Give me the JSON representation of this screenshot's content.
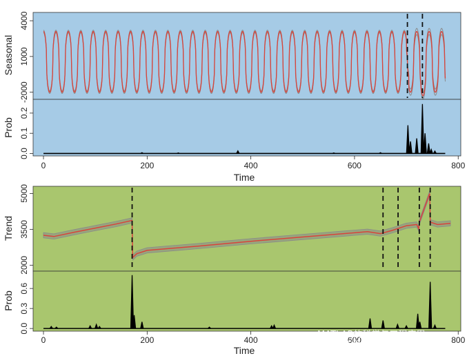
{
  "chart_data": [
    {
      "type": "line",
      "panel": "seasonal",
      "background": "#a6cbe6",
      "ylabel": "Seasonal",
      "yticks": [
        -2000,
        1000,
        4000
      ],
      "ylim": [
        -2600,
        4700
      ],
      "xlim": [
        -20,
        805
      ],
      "series": [
        {
          "color": "#d9433a",
          "band_color": "#8a8a8a",
          "period": 24,
          "amplitude_low": -2000,
          "amplitude_high": 3100,
          "x_end": 775
        }
      ],
      "changepoints": [
        702,
        731
      ]
    },
    {
      "type": "line",
      "panel": "seasonal-prob",
      "background": "#a6cbe6",
      "ylabel": "Prob",
      "yticks": [
        0.0,
        0.1,
        0.2
      ],
      "ylim": [
        -0.012,
        0.268
      ],
      "xlim": [
        -20,
        805
      ],
      "xticks": [
        0,
        200,
        400,
        600,
        800
      ],
      "xlabel": "Time",
      "spikes": [
        {
          "x": 190,
          "y": 0.004
        },
        {
          "x": 260,
          "y": 0.003
        },
        {
          "x": 375,
          "y": 0.013
        },
        {
          "x": 560,
          "y": 0.003
        },
        {
          "x": 650,
          "y": 0.004
        },
        {
          "x": 703,
          "y": 0.14
        },
        {
          "x": 708,
          "y": 0.06
        },
        {
          "x": 720,
          "y": 0.075
        },
        {
          "x": 731,
          "y": 0.245
        },
        {
          "x": 736,
          "y": 0.1
        },
        {
          "x": 743,
          "y": 0.05
        },
        {
          "x": 748,
          "y": 0.02
        },
        {
          "x": 755,
          "y": 0.012
        }
      ]
    },
    {
      "type": "line",
      "panel": "trend",
      "background": "#a9c66e",
      "ylabel": "Trend",
      "yticks": [
        2000,
        3500,
        5000
      ],
      "ylim": [
        1750,
        5300
      ],
      "xlim": [
        -20,
        805
      ],
      "series": [
        {
          "color": "#d9433a",
          "band_color": "#8a8a8a",
          "points": [
            [
              0,
              3250
            ],
            [
              20,
              3200
            ],
            [
              60,
              3380
            ],
            [
              100,
              3550
            ],
            [
              140,
              3720
            ],
            [
              171,
              3870
            ],
            [
              172,
              2320
            ],
            [
              180,
              2480
            ],
            [
              200,
              2620
            ],
            [
              300,
              2800
            ],
            [
              400,
              3000
            ],
            [
              500,
              3180
            ],
            [
              625,
              3400
            ],
            [
              650,
              3320
            ],
            [
              672,
              3450
            ],
            [
              700,
              3650
            ],
            [
              720,
              3700
            ],
            [
              724,
              3520
            ],
            [
              725,
              3800
            ],
            [
              745,
              5000
            ],
            [
              746,
              3800
            ],
            [
              760,
              3700
            ],
            [
              785,
              3750
            ]
          ]
        }
      ],
      "changepoints": [
        171,
        655,
        684,
        725,
        746
      ]
    },
    {
      "type": "line",
      "panel": "trend-prob",
      "background": "#a9c66e",
      "ylabel": "Prob",
      "yticks": [
        0.0,
        0.3,
        0.6
      ],
      "ylim": [
        -0.04,
        0.86
      ],
      "xlim": [
        -20,
        805
      ],
      "xticks": [
        0,
        200,
        400,
        600,
        800
      ],
      "xlabel": "Time",
      "spikes": [
        {
          "x": 15,
          "y": 0.03
        },
        {
          "x": 25,
          "y": 0.02
        },
        {
          "x": 90,
          "y": 0.04
        },
        {
          "x": 102,
          "y": 0.06
        },
        {
          "x": 108,
          "y": 0.03
        },
        {
          "x": 171,
          "y": 0.8
        },
        {
          "x": 175,
          "y": 0.2
        },
        {
          "x": 190,
          "y": 0.1
        },
        {
          "x": 320,
          "y": 0.02
        },
        {
          "x": 440,
          "y": 0.04
        },
        {
          "x": 445,
          "y": 0.05
        },
        {
          "x": 630,
          "y": 0.15
        },
        {
          "x": 655,
          "y": 0.12
        },
        {
          "x": 683,
          "y": 0.06
        },
        {
          "x": 700,
          "y": 0.04
        },
        {
          "x": 722,
          "y": 0.22
        },
        {
          "x": 726,
          "y": 0.1
        },
        {
          "x": 746,
          "y": 0.7
        },
        {
          "x": 755,
          "y": 0.05
        }
      ]
    }
  ],
  "watermark": {
    "line1": "MATLAB的科学与工程应用",
    "line2": "CSDN @梅花香——苦寒来"
  }
}
